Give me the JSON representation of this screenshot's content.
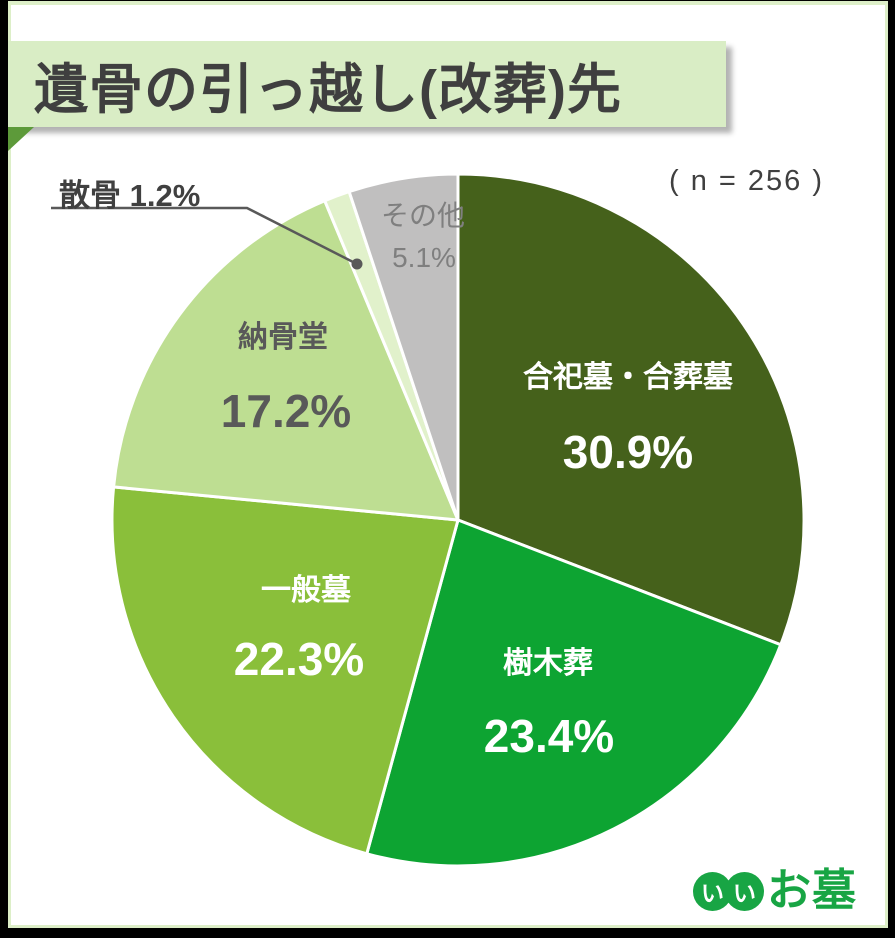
{
  "header": {
    "title": "遺骨の引っ越し(改葬)先",
    "banner_bg": "#d9edc5",
    "fold_color": "#5d9a3a"
  },
  "sample_label": "( n = 256 )",
  "chart_data": {
    "type": "pie",
    "title": "遺骨の引っ越し(改葬)先",
    "n": 256,
    "unit": "%",
    "start_angle_deg": 0,
    "direction": "clockwise",
    "slices": [
      {
        "label": "合祀墓・合葬墓",
        "value": 30.9,
        "pct_text": "30.9%",
        "color": "#45611b",
        "text_color": "#ffffff"
      },
      {
        "label": "樹木葬",
        "value": 23.4,
        "pct_text": "23.4%",
        "color": "#0da432",
        "text_color": "#ffffff"
      },
      {
        "label": "一般墓",
        "value": 22.3,
        "pct_text": "22.3%",
        "color": "#8abf3a",
        "text_color": "#ffffff"
      },
      {
        "label": "納骨堂",
        "value": 17.2,
        "pct_text": "17.2%",
        "color": "#bede92",
        "text_color": "#595959"
      },
      {
        "label": "散骨",
        "value": 1.2,
        "pct_text": "1.2%",
        "color": "#e1f1cb",
        "text_color": "#404040",
        "callout": true
      },
      {
        "label": "その他",
        "value": 5.1,
        "pct_text": "5.1%",
        "color": "#c0bfbf",
        "text_color": "#7f7f7f"
      }
    ],
    "legend": "none",
    "label_style": "inside"
  },
  "callout": {
    "separator": " "
  },
  "logo": {
    "ii": [
      "い",
      "い"
    ],
    "text": "お墓",
    "color": "#18a544"
  },
  "frame": {
    "border_color": "#000000",
    "accent_color": "#ddefc8"
  }
}
